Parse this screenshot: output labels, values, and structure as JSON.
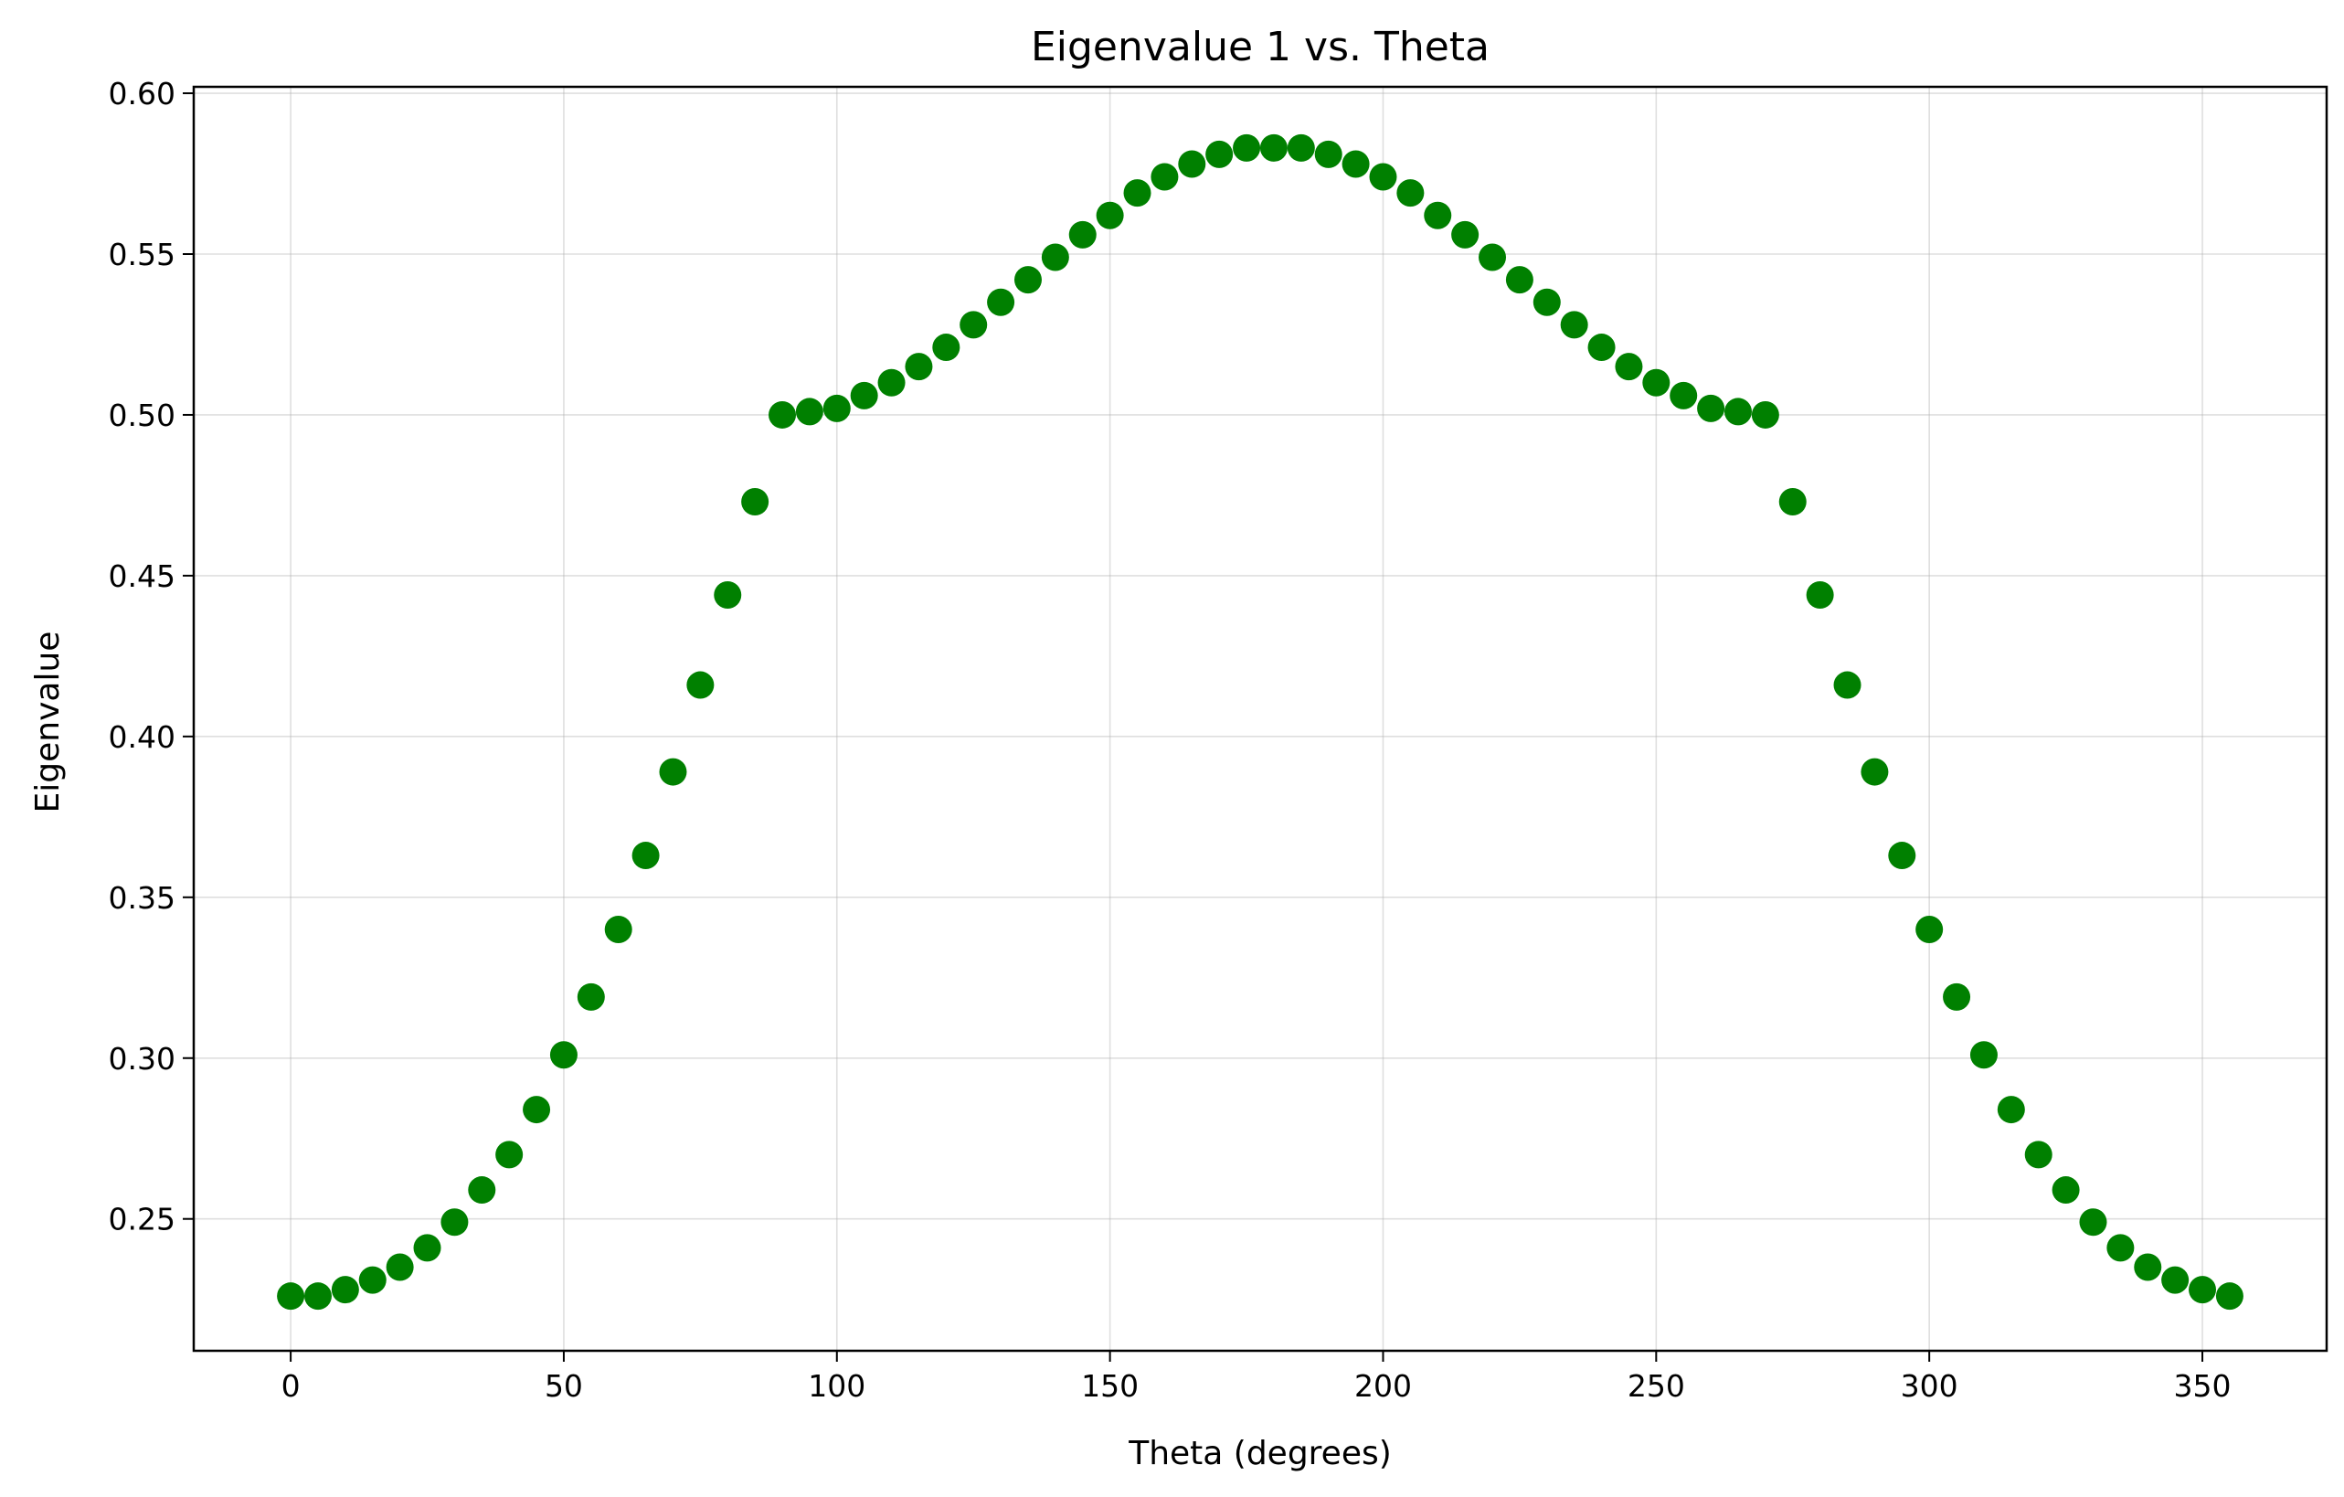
{
  "chart_data": {
    "type": "scatter",
    "title": "Eigenvalue 1 vs. Theta",
    "xlabel": "Theta (degrees)",
    "ylabel": "Eigenvalue",
    "xlim": [
      -17.75,
      372.75
    ],
    "ylim": [
      0.209,
      0.602
    ],
    "xticks": [
      0,
      50,
      100,
      150,
      200,
      250,
      300,
      350
    ],
    "xtick_labels": [
      "0",
      "50",
      "100",
      "150",
      "200",
      "250",
      "300",
      "350"
    ],
    "yticks": [
      0.25,
      0.3,
      0.35,
      0.4,
      0.45,
      0.5,
      0.55,
      0.6
    ],
    "ytick_labels": [
      "0.25",
      "0.30",
      "0.35",
      "0.40",
      "0.45",
      "0.50",
      "0.55",
      "0.60"
    ],
    "grid": true,
    "color": "#008000",
    "series": [
      {
        "x": [
          0,
          5,
          10,
          15,
          20,
          25,
          30,
          35,
          40,
          45,
          50,
          55,
          60,
          65,
          70,
          75,
          80,
          85,
          90,
          95,
          100,
          105,
          110,
          115,
          120,
          125,
          130,
          135,
          140,
          145,
          150,
          155,
          160,
          165,
          170,
          175,
          180,
          185,
          190,
          195,
          200,
          205,
          210,
          215,
          220,
          225,
          230,
          235,
          240,
          245,
          250,
          255,
          260,
          265,
          270,
          275,
          280,
          285,
          290,
          295,
          300,
          305,
          310,
          315,
          320,
          325,
          330,
          335,
          340,
          345,
          350,
          355
        ],
        "y": [
          0.226,
          0.226,
          0.228,
          0.231,
          0.235,
          0.241,
          0.249,
          0.259,
          0.27,
          0.284,
          0.301,
          0.319,
          0.34,
          0.363,
          0.389,
          0.416,
          0.444,
          0.473,
          0.5,
          0.501,
          0.502,
          0.506,
          0.51,
          0.515,
          0.521,
          0.528,
          0.535,
          0.542,
          0.549,
          0.556,
          0.562,
          0.569,
          0.574,
          0.578,
          0.581,
          0.583,
          0.583,
          0.583,
          0.581,
          0.578,
          0.574,
          0.569,
          0.562,
          0.556,
          0.549,
          0.542,
          0.535,
          0.528,
          0.521,
          0.515,
          0.51,
          0.506,
          0.502,
          0.501,
          0.5,
          0.473,
          0.444,
          0.416,
          0.389,
          0.363,
          0.34,
          0.319,
          0.301,
          0.284,
          0.27,
          0.259,
          0.249,
          0.241,
          0.235,
          0.231,
          0.228,
          0.226
        ]
      }
    ]
  }
}
